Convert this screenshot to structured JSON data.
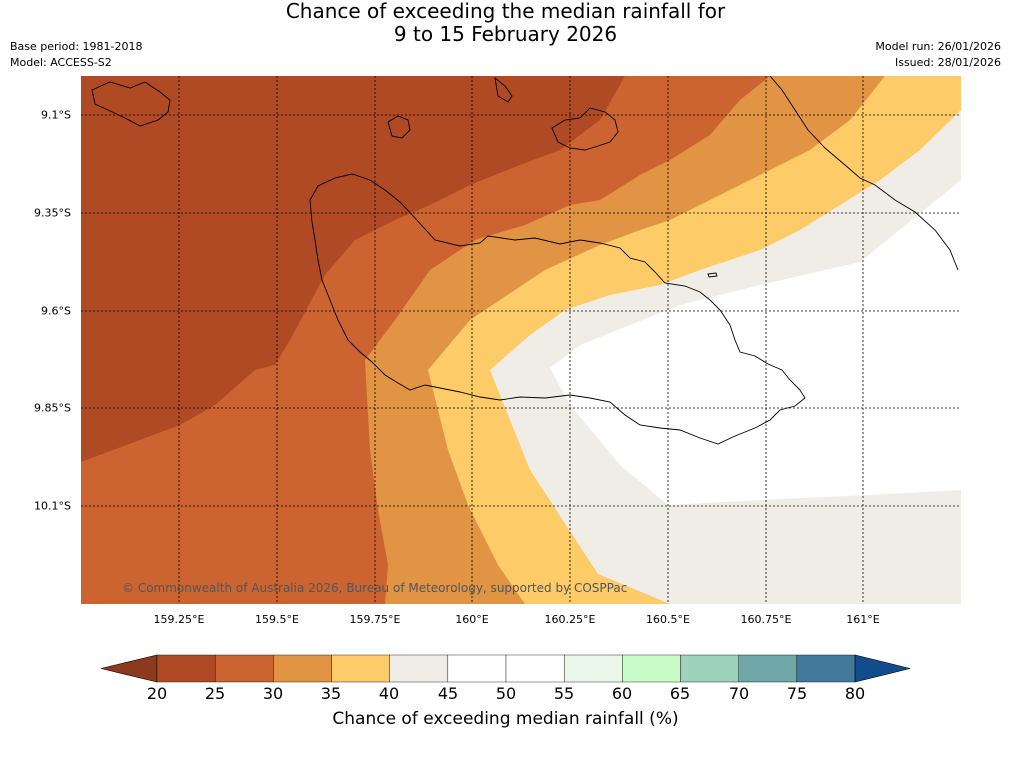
{
  "title": {
    "line1": "Chance of exceeding the median rainfall for",
    "line2": "9 to 15 February 2026"
  },
  "meta": {
    "base_period": "Base period: 1981-2018",
    "model": "Model: ACCESS-S2",
    "model_run": "Model run: 26/01/2026",
    "issued": "Issued: 28/01/2026"
  },
  "map": {
    "lat_labels": [
      "9.1°S",
      "9.35°S",
      "9.6°S",
      "9.85°S",
      "10.1°S"
    ],
    "lon_labels": [
      "159.25°E",
      "159.5°E",
      "159.75°E",
      "160°E",
      "160.25°E",
      "160.5°E",
      "160.75°E",
      "161°E"
    ],
    "copyright": "© Commonwealth of Australia 2026, Bureau of Meteorology, supported by COSPPac"
  },
  "colorbar": {
    "ticks": [
      "20",
      "25",
      "30",
      "35",
      "40",
      "45",
      "50",
      "55",
      "60",
      "65",
      "70",
      "75",
      "80"
    ],
    "colors": [
      "#b04a24",
      "#cc6431",
      "#e19444",
      "#fdcb67",
      "#f0ece6",
      "#ffffff",
      "#ffffff",
      "#eaf6ea",
      "#c9fcc9",
      "#9dd3bc",
      "#6fa6a8",
      "#427a9c"
    ],
    "low_color": "#8c3a1e",
    "high_color": "#124c8c",
    "title": "Chance of exceeding median rainfall (%)"
  },
  "legend_classes": {
    "c20_25": "#b04a24",
    "c25_30": "#cc6431",
    "c30_35": "#e19444",
    "c35_40": "#fdcb67",
    "c40_45": "#f0ece6",
    "c45_55": "#ffffff"
  }
}
